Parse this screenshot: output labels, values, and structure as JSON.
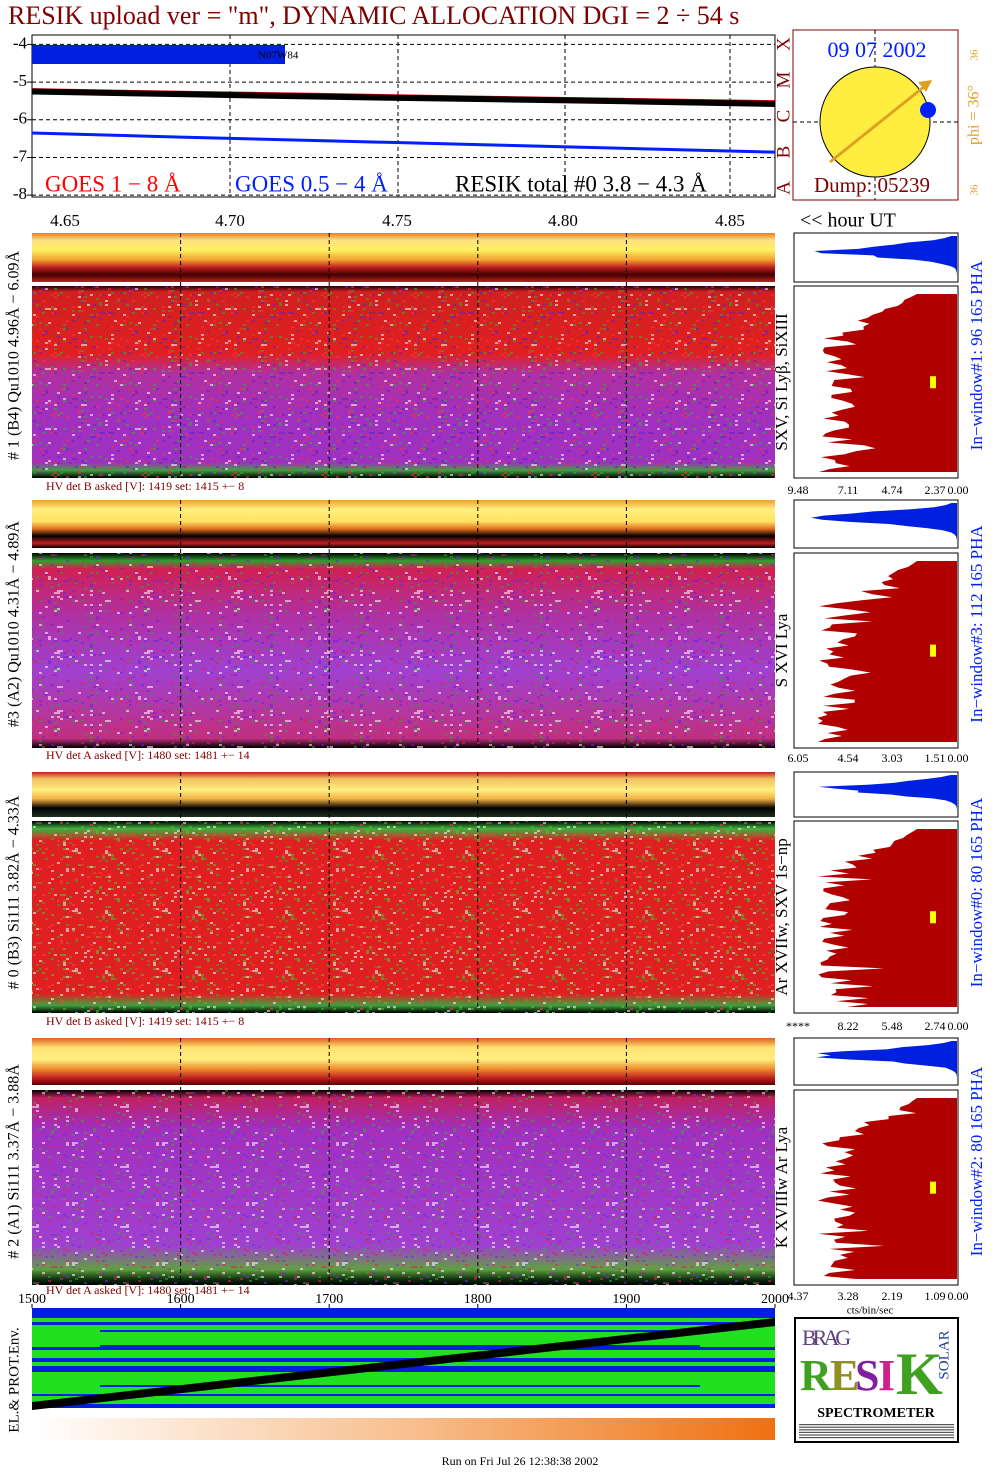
{
  "title": "RESIK upload ver = \"m\", DYNAMIC ALLOCATION  DGI =   2 ÷  54 s",
  "chart_data": [
    {
      "type": "line",
      "x": [
        1500,
        1600,
        1700,
        1800,
        1900,
        2000
      ],
      "xlim": [
        1500,
        2000
      ],
      "ylim": [
        -8.05,
        -3.75
      ],
      "yticks": [
        -4,
        -5,
        -6,
        -7,
        -8
      ],
      "grid": true,
      "annotation": "N07W84",
      "series": [
        {
          "name": "GOES 1 − 8 Å",
          "color": "#ff0000",
          "values": [
            -5.2,
            -5.27,
            -5.33,
            -5.4,
            -5.46,
            -5.52
          ]
        },
        {
          "name": "RESIK total #0  3.8 − 4.3 Å",
          "color": "#000000",
          "values": [
            -5.25,
            -5.32,
            -5.39,
            -5.45,
            -5.51,
            -5.58
          ]
        },
        {
          "name": "GOES 0.5 − 4 Å",
          "color": "#0020ff",
          "values": [
            -6.35,
            -6.46,
            -6.56,
            -6.66,
            -6.76,
            -6.86
          ]
        }
      ]
    }
  ],
  "sun": {
    "date": "09 07 2002",
    "dump": "Dump: 05239",
    "phi": "phi = 36°",
    "scale_top": "36",
    "scale_bottom": "36",
    "classes": [
      "X",
      "M",
      "C",
      "B",
      "A"
    ]
  },
  "wavelength_axis": {
    "ticks": [
      "4.65",
      "4.70",
      "4.75",
      "4.80",
      "4.85"
    ],
    "hour_label": "<< hour UT"
  },
  "panels": [
    {
      "label": "# 1 (B4) Qu1010 4.96Å − 6.09Å",
      "lines": "SXV, Si Lyβ, SiXIII",
      "window": "In−window#1:   96 165  PHA",
      "hv": "HV det B asked [V]:  1419 set:  1415  +−    8",
      "pha_ticks": [
        "9.48",
        "7.11",
        "4.74",
        "2.37",
        "0.00"
      ]
    },
    {
      "label": "#3 (A2) Qu1010  4.31Å − 4.89Å",
      "lines": "S XVI Lya",
      "window": "In−window#3:  112 165  PHA",
      "hv": "HV det A asked [V]:  1480 set:  1481  +−    14",
      "pha_ticks": [
        "6.05",
        "4.54",
        "3.03",
        "1.51",
        "0.00"
      ]
    },
    {
      "label": "# 0 (B3) Si111  3.82Å − 4.33Å",
      "lines": "Ar XVIIw,  SXV 1s−np",
      "window": "In−window#0:   80 165  PHA",
      "hv": "HV det B asked [V]:  1419 set:  1415  +−    8",
      "pha_ticks": [
        "****",
        "8.22",
        "5.48",
        "2.74",
        "0.00"
      ]
    },
    {
      "label": "# 2 (A1) Si111  3.37Å − 3.88Å",
      "lines": "K XVIIIw  Ar Lya",
      "window": "In−window#2:   80 165  PHA",
      "hv": "HV det A asked [V]:  1480 set:  1481  +−    14",
      "pha_ticks": [
        "4.37",
        "3.28",
        "2.19",
        "1.09",
        "0.00"
      ]
    }
  ],
  "pha_unit": "cts/bin/sec",
  "time_axis": {
    "ticks": [
      1500,
      1600,
      1700,
      1800,
      1900,
      2000
    ],
    "label": "EL.& PROT.Env."
  },
  "logo": {
    "top": "BRAG",
    "letters": [
      "R",
      "E",
      "S",
      "I",
      "K"
    ],
    "side": "SOLAR",
    "bottom": "SPECTROMETER"
  },
  "footer": "Run on Fri Jul 26 12:38:38 2002"
}
